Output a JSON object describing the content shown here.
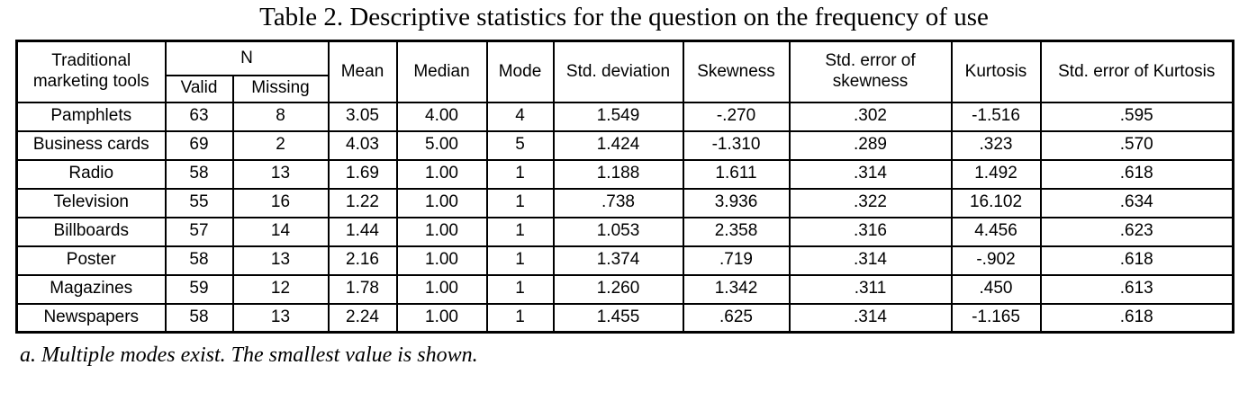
{
  "title": "Table 2. Descriptive statistics for the question on the frequency of use",
  "table": {
    "header": {
      "col_tools": "Traditional marketing tools",
      "col_n": "N",
      "col_valid": "Valid",
      "col_missing": "Missing",
      "col_mean": "Mean",
      "col_median": "Median",
      "col_mode": "Mode",
      "col_std_deviation": "Std. deviation",
      "col_skewness": "Skewness",
      "col_se_skewness": "Std. error of skewness",
      "col_kurtosis": "Kurtosis",
      "col_se_kurtosis": "Std. error of Kurtosis"
    },
    "rows": [
      {
        "tool": "Pamphlets",
        "valid": "63",
        "missing": "8",
        "mean": "3.05",
        "median": "4.00",
        "mode": "4",
        "std_deviation": "1.549",
        "skewness": "-.270",
        "se_skewness": ".302",
        "kurtosis": "-1.516",
        "se_kurtosis": ".595"
      },
      {
        "tool": "Business cards",
        "valid": "69",
        "missing": "2",
        "mean": "4.03",
        "median": "5.00",
        "mode": "5",
        "std_deviation": "1.424",
        "skewness": "-1.310",
        "se_skewness": ".289",
        "kurtosis": ".323",
        "se_kurtosis": ".570"
      },
      {
        "tool": "Radio",
        "valid": "58",
        "missing": "13",
        "mean": "1.69",
        "median": "1.00",
        "mode": "1",
        "std_deviation": "1.188",
        "skewness": "1.611",
        "se_skewness": ".314",
        "kurtosis": "1.492",
        "se_kurtosis": ".618"
      },
      {
        "tool": "Television",
        "valid": "55",
        "missing": "16",
        "mean": "1.22",
        "median": "1.00",
        "mode": "1",
        "std_deviation": ".738",
        "skewness": "3.936",
        "se_skewness": ".322",
        "kurtosis": "16.102",
        "se_kurtosis": ".634"
      },
      {
        "tool": "Billboards",
        "valid": "57",
        "missing": "14",
        "mean": "1.44",
        "median": "1.00",
        "mode": "1",
        "std_deviation": "1.053",
        "skewness": "2.358",
        "se_skewness": ".316",
        "kurtosis": "4.456",
        "se_kurtosis": ".623"
      },
      {
        "tool": "Poster",
        "valid": "58",
        "missing": "13",
        "mean": "2.16",
        "median": "1.00",
        "mode": "1",
        "std_deviation": "1.374",
        "skewness": ".719",
        "se_skewness": ".314",
        "kurtosis": "-.902",
        "se_kurtosis": ".618"
      },
      {
        "tool": "Magazines",
        "valid": "59",
        "missing": "12",
        "mean": "1.78",
        "median": "1.00",
        "mode": "1",
        "std_deviation": "1.260",
        "skewness": "1.342",
        "se_skewness": ".311",
        "kurtosis": ".450",
        "se_kurtosis": ".613"
      },
      {
        "tool": "Newspapers",
        "valid": "58",
        "missing": "13",
        "mean": "2.24",
        "median": "1.00",
        "mode": "1",
        "std_deviation": "1.455",
        "skewness": ".625",
        "se_skewness": ".314",
        "kurtosis": "-1.165",
        "se_kurtosis": ".618"
      }
    ]
  },
  "footnote": "a. Multiple modes exist. The smallest value is shown."
}
